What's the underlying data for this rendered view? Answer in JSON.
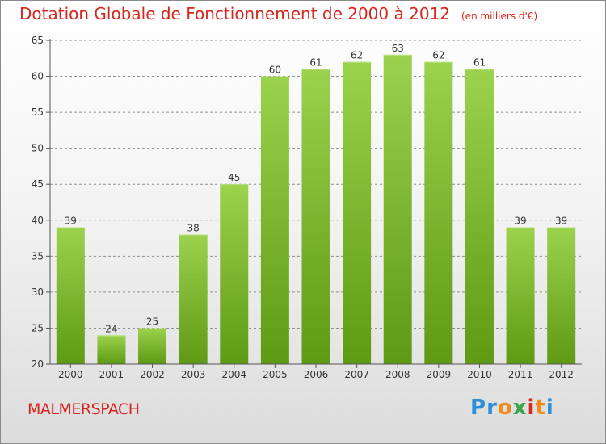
{
  "title": "Dotation Globale de Fonctionnement de 2000 à 2012",
  "subtitle": "(en milliers d'€)",
  "city": "MALMERSPACH",
  "logo": {
    "letters": [
      "P",
      "r",
      "o",
      "x",
      "i",
      "t",
      "i"
    ],
    "colors": [
      "#2f8fd6",
      "#2f8fd6",
      "#f08a1c",
      "#3aa64a",
      "#d7261e",
      "#f08a1c",
      "#2f8fd6"
    ]
  },
  "colors": {
    "accent": "#d7261e",
    "bar_top": "#9bd24e",
    "bar_bottom": "#5e9a14",
    "grid": "#8f8f8f"
  },
  "chart_data": {
    "type": "bar",
    "title": "Dotation Globale de Fonctionnement de 2000 à 2012",
    "subtitle": "(en milliers d'€)",
    "categories": [
      "2000",
      "2001",
      "2002",
      "2003",
      "2004",
      "2005",
      "2006",
      "2007",
      "2008",
      "2009",
      "2010",
      "2011",
      "2012"
    ],
    "values": [
      39,
      24,
      25,
      38,
      45,
      60,
      61,
      62,
      63,
      62,
      61,
      39,
      39
    ],
    "ylim": [
      20,
      65
    ],
    "yticks": [
      20,
      25,
      30,
      35,
      40,
      45,
      50,
      55,
      60,
      65
    ],
    "grid": "horizontal dashed",
    "legend": "none"
  }
}
